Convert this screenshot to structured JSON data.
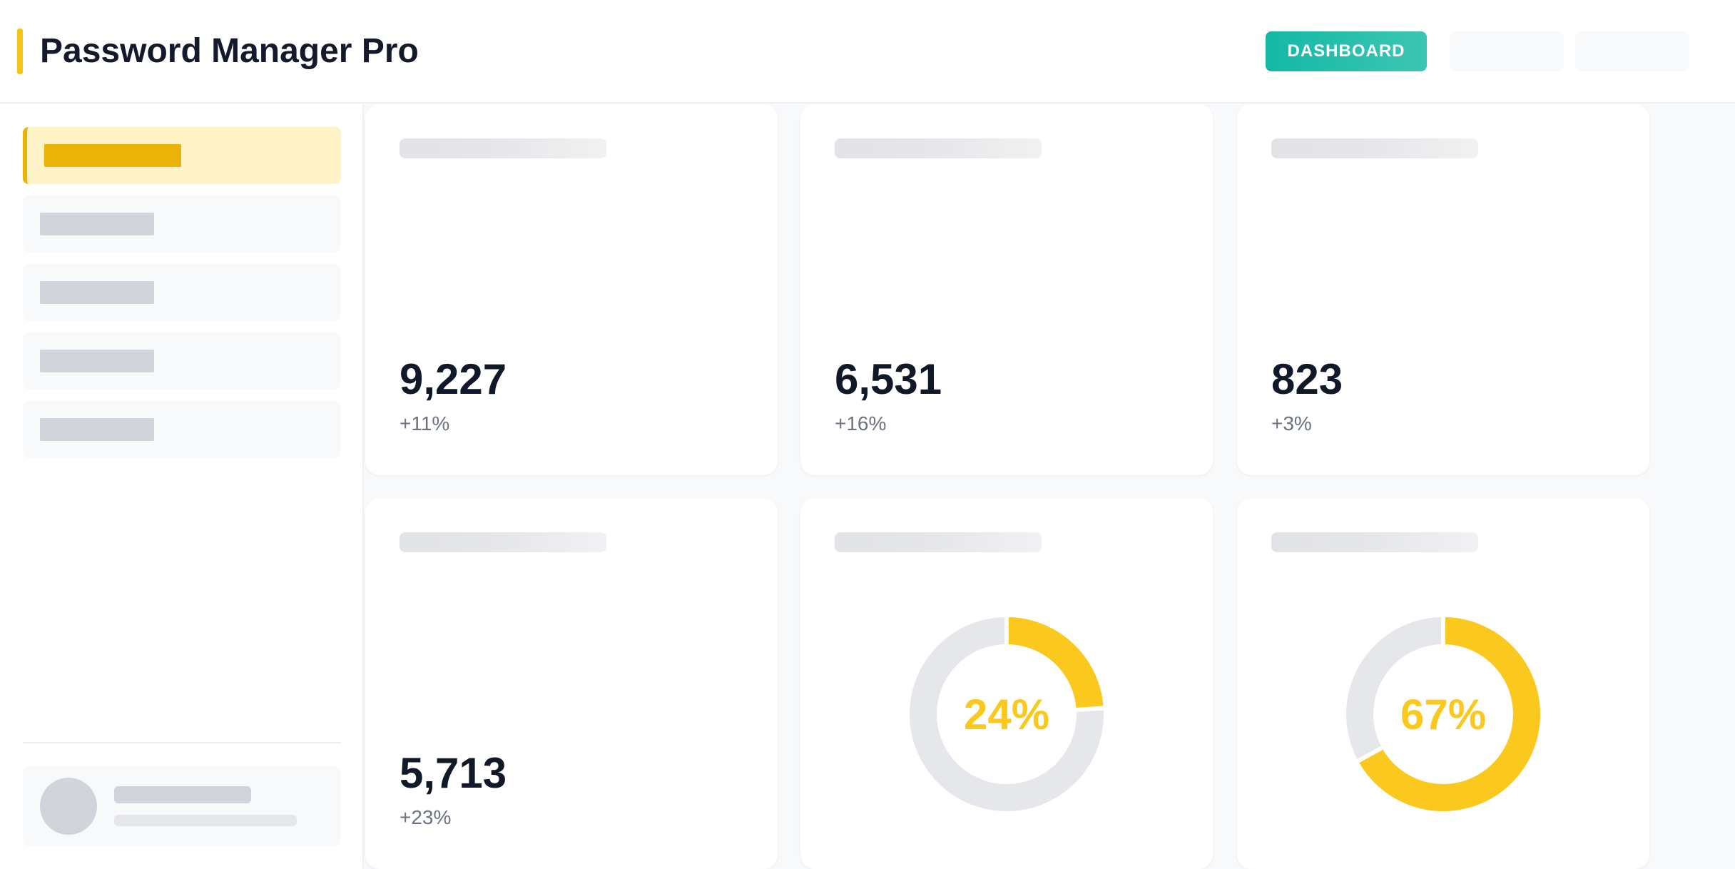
{
  "app": {
    "title": "Password Manager Pro"
  },
  "header": {
    "nav": [
      {
        "label": "DASHBOARD",
        "active": true
      },
      {
        "label": "",
        "active": false
      },
      {
        "label": "",
        "active": false
      }
    ]
  },
  "sidebar": {
    "items": [
      {
        "label": "",
        "active": true
      },
      {
        "label": "",
        "active": false
      },
      {
        "label": "",
        "active": false
      },
      {
        "label": "",
        "active": false
      },
      {
        "label": "",
        "active": false
      }
    ]
  },
  "cards": {
    "stats": [
      {
        "value": "9,227",
        "change": "+11%"
      },
      {
        "value": "6,531",
        "change": "+16%"
      },
      {
        "value": "823",
        "change": "+3%"
      },
      {
        "value": "5,713",
        "change": "+23%"
      }
    ],
    "donuts": [
      {
        "percent": 24,
        "label": "24%"
      },
      {
        "percent": 67,
        "label": "67%"
      }
    ]
  },
  "colors": {
    "accent": "#f5c518",
    "primary": "#14b8a6",
    "donut_fill": "#fbc91d",
    "donut_track": "#e5e7eb",
    "text_dark": "#111827",
    "text_muted": "#6b7280"
  }
}
